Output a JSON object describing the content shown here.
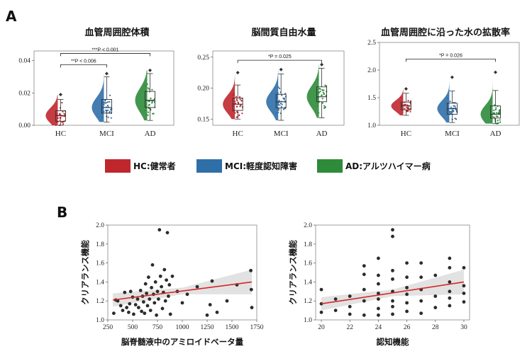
{
  "panel_a_label": "A",
  "panel_b_label": "B",
  "legend": [
    {
      "label": "HC:健常者",
      "color": "#c0272d"
    },
    {
      "label": "MCI:軽度認知障害",
      "color": "#2f6fa8"
    },
    {
      "label": "AD:アルツハイマー病",
      "color": "#2e8b3a"
    }
  ],
  "chart_data": [
    {
      "type": "raincloud",
      "title": "血管周囲腔体積",
      "categories": [
        "HC",
        "MCI",
        "AD"
      ],
      "colors": [
        "#c0272d",
        "#2f6fa8",
        "#2e8b3a"
      ],
      "ylim": [
        0,
        0.046
      ],
      "yticks": [
        "0.00",
        "0.02",
        "0.04"
      ],
      "ytick_values": [
        0,
        0.02,
        0.04
      ],
      "box": [
        {
          "q1": 0.0025,
          "median": 0.006,
          "q3": 0.009,
          "whisker_low": 0.0,
          "whisker_high": 0.016,
          "outlier": 0.019
        },
        {
          "q1": 0.0075,
          "median": 0.011,
          "q3": 0.016,
          "whisker_low": 0.002,
          "whisker_high": 0.03,
          "outlier": 0.032
        },
        {
          "q1": 0.011,
          "median": 0.0155,
          "q3": 0.021,
          "whisker_low": 0.003,
          "whisker_high": 0.032,
          "outlier": 0.034
        }
      ],
      "brackets": [
        {
          "label": "***P < 0.001",
          "from": 0,
          "to": 2,
          "level": 0.0445
        },
        {
          "label": "**P < 0.006",
          "from": 0,
          "to": 1,
          "level": 0.0375
        }
      ]
    },
    {
      "type": "raincloud",
      "title": "脳間質自由水量",
      "categories": [
        "HC",
        "MCI",
        "AD"
      ],
      "colors": [
        "#c0272d",
        "#2f6fa8",
        "#2e8b3a"
      ],
      "ylim": [
        0.14,
        0.26
      ],
      "yticks": [
        "0.15",
        "0.20",
        "0.25"
      ],
      "ytick_values": [
        0.15,
        0.2,
        0.25
      ],
      "box": [
        {
          "q1": 0.164,
          "median": 0.174,
          "q3": 0.184,
          "whisker_low": 0.15,
          "whisker_high": 0.205,
          "outlier": 0.225
        },
        {
          "q1": 0.168,
          "median": 0.178,
          "q3": 0.19,
          "whisker_low": 0.148,
          "whisker_high": 0.223,
          "outlier": 0.23
        },
        {
          "q1": 0.178,
          "median": 0.186,
          "q3": 0.202,
          "whisker_low": 0.152,
          "whisker_high": 0.232,
          "outlier": 0.238
        }
      ],
      "brackets": [
        {
          "label": "*P = 0.025",
          "from": 0,
          "to": 2,
          "level": 0.245
        }
      ]
    },
    {
      "type": "raincloud",
      "title": "血管周囲腔に沿った水の拡散率",
      "categories": [
        "HC",
        "MCI",
        "AD"
      ],
      "colors": [
        "#c0272d",
        "#2f6fa8",
        "#2e8b3a"
      ],
      "ylim": [
        1.0,
        2.5
      ],
      "yticks": [
        "1.0",
        "1.5",
        "2.0",
        "2.5"
      ],
      "ytick_values": [
        1.0,
        1.5,
        2.0,
        2.5
      ],
      "box": [
        {
          "q1": 1.28,
          "median": 1.35,
          "q3": 1.42,
          "whisker_low": 1.18,
          "whisker_high": 1.58,
          "outlier": 1.66
        },
        {
          "q1": 1.2,
          "median": 1.3,
          "q3": 1.4,
          "whisker_low": 1.05,
          "whisker_high": 1.62,
          "outlier": 1.87
        },
        {
          "q1": 1.13,
          "median": 1.2,
          "q3": 1.35,
          "whisker_low": 1.03,
          "whisker_high": 1.63,
          "outlier": 1.96
        }
      ],
      "brackets": [
        {
          "label": "*P = 0.026",
          "from": 0,
          "to": 2,
          "level": 2.2
        }
      ]
    },
    {
      "type": "scatter",
      "ylabel": "クリアランス機能",
      "xlabel": "脳脊髄液中のアミロイドベータ量",
      "xlim": [
        250,
        1750
      ],
      "ylim": [
        1.0,
        2.0
      ],
      "xticks": [
        "250",
        "500",
        "750",
        "1000",
        "1250",
        "1500",
        "1750"
      ],
      "xtick_values": [
        250,
        500,
        750,
        1000,
        1250,
        1500,
        1750
      ],
      "yticks": [
        "1.0",
        "1.2",
        "1.4",
        "1.6",
        "1.8",
        "2.0"
      ],
      "ytick_values": [
        1.0,
        1.2,
        1.4,
        1.6,
        1.8,
        2.0
      ],
      "fit": {
        "x0": 300,
        "y0": 1.21,
        "x1": 1700,
        "y1": 1.4,
        "color": "#d62728"
      },
      "points": [
        [
          310,
          1.07
        ],
        [
          330,
          1.21
        ],
        [
          350,
          1.2
        ],
        [
          380,
          1.15
        ],
        [
          400,
          1.1
        ],
        [
          420,
          1.29
        ],
        [
          440,
          1.13
        ],
        [
          460,
          1.08
        ],
        [
          470,
          1.17
        ],
        [
          480,
          1.3
        ],
        [
          500,
          1.24
        ],
        [
          510,
          1.06
        ],
        [
          530,
          1.16
        ],
        [
          550,
          1.22
        ],
        [
          560,
          1.13
        ],
        [
          580,
          1.31
        ],
        [
          590,
          1.09
        ],
        [
          600,
          1.25
        ],
        [
          610,
          1.19
        ],
        [
          620,
          1.07
        ],
        [
          630,
          1.38
        ],
        [
          640,
          1.28
        ],
        [
          650,
          1.15
        ],
        [
          660,
          1.45
        ],
        [
          670,
          1.22
        ],
        [
          680,
          1.1
        ],
        [
          690,
          1.34
        ],
        [
          700,
          1.58
        ],
        [
          710,
          1.27
        ],
        [
          720,
          1.18
        ],
        [
          730,
          1.4
        ],
        [
          740,
          1.05
        ],
        [
          750,
          1.3
        ],
        [
          760,
          1.22
        ],
        [
          770,
          1.95
        ],
        [
          780,
          1.46
        ],
        [
          790,
          1.35
        ],
        [
          800,
          1.12
        ],
        [
          810,
          1.29
        ],
        [
          820,
          1.53
        ],
        [
          830,
          1.2
        ],
        [
          840,
          1.42
        ],
        [
          850,
          1.92
        ],
        [
          860,
          1.25
        ],
        [
          870,
          1.37
        ],
        [
          880,
          1.06
        ],
        [
          900,
          1.46
        ],
        [
          950,
          1.3
        ],
        [
          1000,
          1.18
        ],
        [
          1050,
          1.27
        ],
        [
          1150,
          1.35
        ],
        [
          1250,
          1.05
        ],
        [
          1280,
          1.16
        ],
        [
          1300,
          1.41
        ],
        [
          1350,
          1.08
        ],
        [
          1450,
          1.2
        ],
        [
          1550,
          1.37
        ],
        [
          1690,
          1.52
        ],
        [
          1695,
          1.32
        ],
        [
          1700,
          1.13
        ]
      ]
    },
    {
      "type": "scatter",
      "ylabel": "クリアランス機能",
      "xlabel": "認知機能",
      "xlim": [
        19.6,
        30.4
      ],
      "ylim": [
        1.0,
        2.0
      ],
      "xticks": [
        "20",
        "22",
        "24",
        "26",
        "28",
        "30"
      ],
      "xtick_values": [
        20,
        22,
        24,
        26,
        28,
        30
      ],
      "yticks": [
        "1.0",
        "1.2",
        "1.4",
        "1.6",
        "1.8",
        "2.0"
      ],
      "ytick_values": [
        1.0,
        1.2,
        1.4,
        1.6,
        1.8,
        2.0
      ],
      "fit": {
        "x0": 20,
        "y0": 1.17,
        "x1": 30,
        "y1": 1.4,
        "color": "#d62728"
      },
      "points": [
        [
          20,
          1.17
        ],
        [
          20,
          1.32
        ],
        [
          20,
          1.08
        ],
        [
          21,
          1.1
        ],
        [
          21,
          1.22
        ],
        [
          22,
          1.06
        ],
        [
          22,
          1.25
        ],
        [
          22,
          1.14
        ],
        [
          23,
          1.05
        ],
        [
          23,
          1.57
        ],
        [
          23,
          1.32
        ],
        [
          23,
          1.48
        ],
        [
          23,
          1.2
        ],
        [
          24,
          1.05
        ],
        [
          24,
          1.12
        ],
        [
          24,
          1.22
        ],
        [
          24,
          1.28
        ],
        [
          24,
          1.38
        ],
        [
          24,
          1.47
        ],
        [
          24,
          1.65
        ],
        [
          25,
          1.06
        ],
        [
          25,
          1.14
        ],
        [
          25,
          1.2
        ],
        [
          25,
          1.3
        ],
        [
          25,
          1.43
        ],
        [
          25,
          1.52
        ],
        [
          25,
          1.95
        ],
        [
          25,
          1.88
        ],
        [
          26,
          1.09
        ],
        [
          26,
          1.18
        ],
        [
          26,
          1.27
        ],
        [
          26,
          1.34
        ],
        [
          26,
          1.6
        ],
        [
          26,
          1.45
        ],
        [
          27,
          1.07
        ],
        [
          27,
          1.2
        ],
        [
          27,
          1.32
        ],
        [
          27,
          1.45
        ],
        [
          27,
          1.6
        ],
        [
          28,
          1.13
        ],
        [
          28,
          1.25
        ],
        [
          28,
          1.47
        ],
        [
          29,
          1.15
        ],
        [
          29,
          1.23
        ],
        [
          29,
          1.3
        ],
        [
          29,
          1.4
        ],
        [
          29,
          1.55
        ],
        [
          29,
          1.65
        ],
        [
          30,
          1.19
        ],
        [
          30,
          1.28
        ],
        [
          30,
          1.36
        ],
        [
          30,
          1.55
        ]
      ]
    }
  ]
}
